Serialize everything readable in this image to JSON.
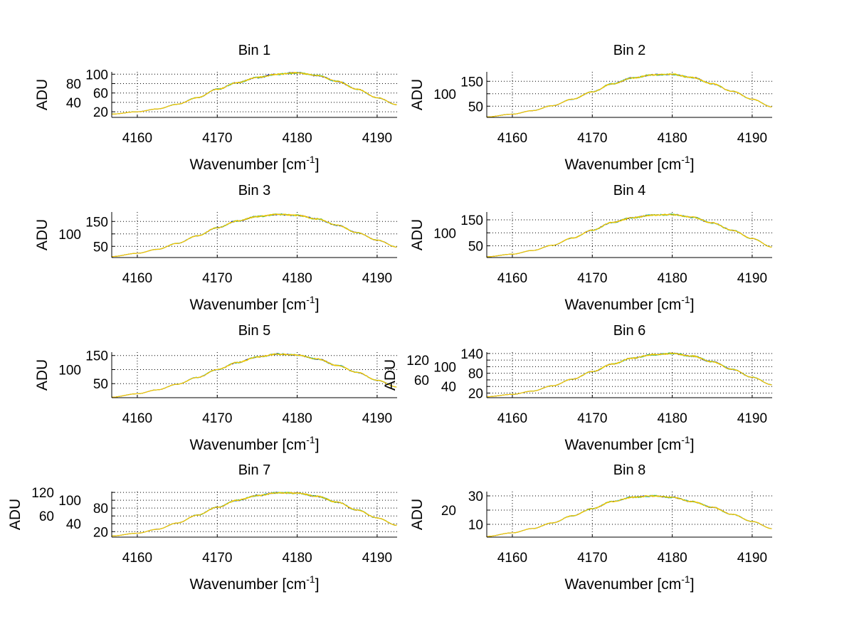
{
  "chart_data": [
    {
      "type": "line",
      "title": "Bin 1",
      "xlabel": "Wavenumber [cm",
      "xlabel_sup": "-1",
      "xlabel_end": "]",
      "ylabel": "ADU",
      "xlim": [
        4156.8,
        4192.5
      ],
      "ylim": [
        8,
        105
      ],
      "xticks": [
        4160,
        4170,
        4180,
        4190
      ],
      "yticks": [
        20,
        40,
        60,
        80,
        100
      ],
      "grid": true,
      "x": [
        4156.8,
        4160,
        4162.5,
        4165,
        4167.5,
        4170,
        4172.5,
        4175,
        4177.5,
        4180,
        4182.5,
        4185,
        4187.5,
        4190,
        4192.5
      ],
      "values": [
        15,
        20,
        26,
        36,
        50,
        68,
        82,
        93,
        100,
        103,
        97,
        85,
        68,
        50,
        35
      ]
    },
    {
      "type": "line",
      "title": "Bin 2",
      "xlabel": "Wavenumber [cm",
      "xlabel_sup": "-1",
      "xlabel_end": "]",
      "ylabel": "ADU",
      "xlim": [
        4156.8,
        4192.5
      ],
      "ylim": [
        5,
        188
      ],
      "xticks": [
        4160,
        4170,
        4180,
        4190
      ],
      "yticks": [
        50,
        100,
        150
      ],
      "grid": true,
      "x": [
        4156.8,
        4160,
        4162.5,
        4165,
        4167.5,
        4170,
        4172.5,
        4175,
        4177.5,
        4180,
        4182.5,
        4185,
        4187.5,
        4190,
        4192.5
      ],
      "values": [
        7,
        18,
        32,
        52,
        78,
        108,
        140,
        163,
        176,
        178,
        165,
        140,
        110,
        78,
        47
      ]
    },
    {
      "type": "line",
      "title": "Bin 3",
      "xlabel": "Wavenumber [cm",
      "xlabel_sup": "-1",
      "xlabel_end": "]",
      "ylabel": "ADU",
      "xlim": [
        4156.8,
        4192.5
      ],
      "ylim": [
        5,
        188
      ],
      "xticks": [
        4160,
        4170,
        4180,
        4190
      ],
      "yticks": [
        50,
        100,
        150
      ],
      "grid": true,
      "x": [
        4156.8,
        4160,
        4162.5,
        4165,
        4167.5,
        4170,
        4172.5,
        4175,
        4177.5,
        4180,
        4182.5,
        4185,
        4187.5,
        4190,
        4192.5
      ],
      "values": [
        9,
        22,
        38,
        62,
        92,
        125,
        152,
        170,
        178,
        175,
        160,
        135,
        105,
        75,
        47
      ]
    },
    {
      "type": "line",
      "title": "Bin 4",
      "xlabel": "Wavenumber [cm",
      "xlabel_sup": "-1",
      "xlabel_end": "]",
      "ylabel": "ADU",
      "xlim": [
        4156.8,
        4192.5
      ],
      "ylim": [
        5,
        180
      ],
      "xticks": [
        4160,
        4170,
        4180,
        4190
      ],
      "yticks": [
        50,
        100,
        150
      ],
      "grid": true,
      "x": [
        4156.8,
        4160,
        4162.5,
        4165,
        4167.5,
        4170,
        4172.5,
        4175,
        4177.5,
        4180,
        4182.5,
        4185,
        4187.5,
        4190,
        4192.5
      ],
      "values": [
        8,
        18,
        32,
        52,
        80,
        110,
        140,
        158,
        168,
        170,
        160,
        138,
        110,
        78,
        45
      ]
    },
    {
      "type": "line",
      "title": "Bin 5",
      "xlabel": "Wavenumber [cm",
      "xlabel_sup": "-1",
      "xlabel_end": "]",
      "ylabel": "ADU",
      "xlim": [
        4156.8,
        4192.5
      ],
      "ylim": [
        0,
        162
      ],
      "xticks": [
        4160,
        4170,
        4180,
        4190
      ],
      "yticks": [
        50,
        100,
        150
      ],
      "grid": true,
      "x": [
        4156.8,
        4160,
        4162.5,
        4165,
        4167.5,
        4170,
        4172.5,
        4175,
        4177.5,
        4180,
        4182.5,
        4185,
        4187.5,
        4190,
        4192.5
      ],
      "values": [
        2,
        14,
        28,
        48,
        72,
        100,
        125,
        145,
        155,
        152,
        138,
        115,
        90,
        62,
        38
      ]
    },
    {
      "type": "line",
      "title": "Bin 6",
      "xlabel": "Wavenumber [cm",
      "xlabel_sup": "-1",
      "xlabel_end": "]",
      "ylabel": "ADU",
      "xlim": [
        4156.8,
        4192.5
      ],
      "ylim": [
        6,
        144
      ],
      "xticks": [
        4160,
        4170,
        4180,
        4190
      ],
      "yticks": [
        20,
        40,
        60,
        80,
        100,
        120,
        140
      ],
      "grid": true,
      "x": [
        4156.8,
        4160,
        4162.5,
        4165,
        4167.5,
        4170,
        4172.5,
        4175,
        4177.5,
        4180,
        4182.5,
        4185,
        4187.5,
        4190,
        4192.5
      ],
      "values": [
        9,
        16,
        26,
        42,
        62,
        85,
        108,
        126,
        136,
        140,
        132,
        115,
        92,
        68,
        45
      ]
    },
    {
      "type": "line",
      "title": "Bin 7",
      "xlabel": "Wavenumber [cm",
      "xlabel_sup": "-1",
      "xlabel_end": "]",
      "ylabel": "ADU",
      "xlim": [
        4156.8,
        4192.5
      ],
      "ylim": [
        6,
        122
      ],
      "xticks": [
        4160,
        4170,
        4180,
        4190
      ],
      "yticks": [
        20,
        40,
        60,
        80,
        100,
        120
      ],
      "grid": true,
      "x": [
        4156.8,
        4160,
        4162.5,
        4165,
        4167.5,
        4170,
        4172.5,
        4175,
        4177.5,
        4180,
        4182.5,
        4185,
        4187.5,
        4190,
        4192.5
      ],
      "values": [
        9,
        16,
        26,
        42,
        62,
        82,
        100,
        112,
        119,
        118,
        110,
        95,
        75,
        55,
        36
      ]
    },
    {
      "type": "line",
      "title": "Bin 8",
      "xlabel": "Wavenumber [cm",
      "xlabel_sup": "-1",
      "xlabel_end": "]",
      "ylabel": "ADU",
      "xlim": [
        4156.8,
        4192.5
      ],
      "ylim": [
        1,
        33
      ],
      "xticks": [
        4160,
        4170,
        4180,
        4190
      ],
      "yticks": [
        10,
        20,
        30
      ],
      "grid": true,
      "x": [
        4156.8,
        4160,
        4162.5,
        4165,
        4167.5,
        4170,
        4172.5,
        4175,
        4177.5,
        4180,
        4182.5,
        4185,
        4187.5,
        4190,
        4192.5
      ],
      "values": [
        1.5,
        4,
        7,
        11,
        16,
        21,
        26,
        29,
        30,
        29,
        26,
        22,
        17,
        12,
        7
      ]
    }
  ],
  "colors": {
    "series": [
      "#0000aa",
      "#00c0c0",
      "#40c040",
      "#e8d000",
      "#ffc000"
    ]
  }
}
